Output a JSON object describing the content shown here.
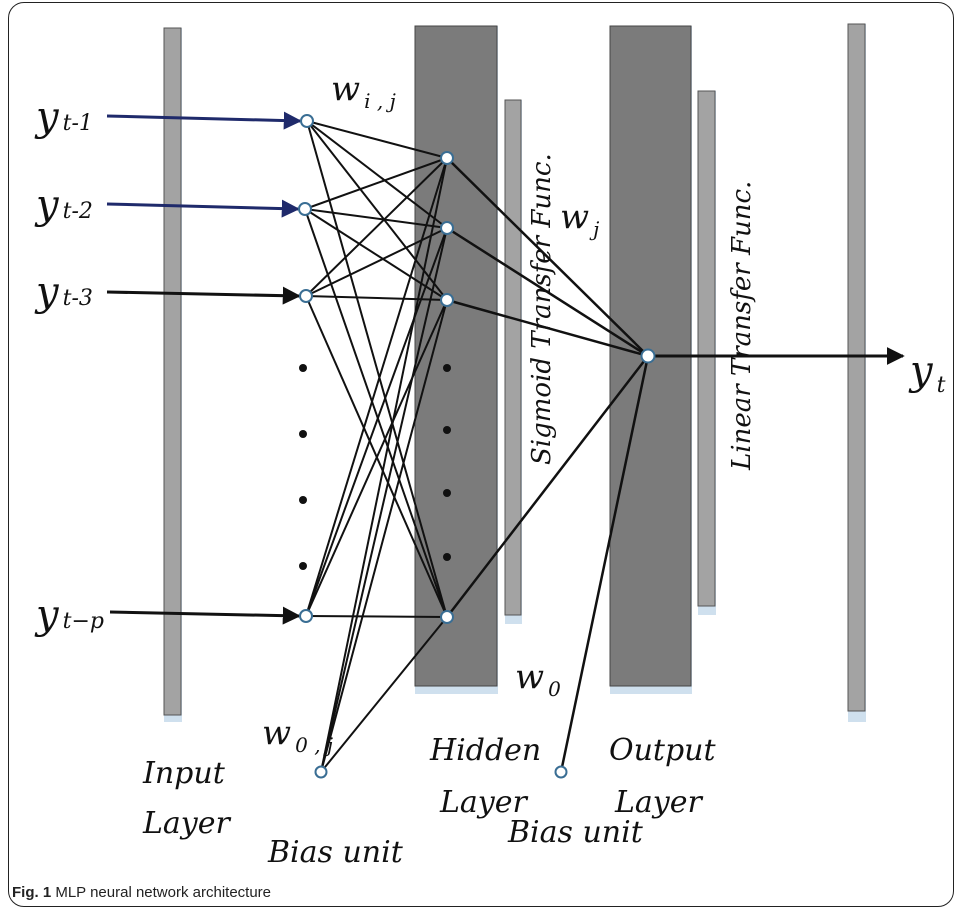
{
  "inputs": [
    {
      "base": "y",
      "sub": "t-1"
    },
    {
      "base": "y",
      "sub": "t-2"
    },
    {
      "base": "y",
      "sub": "t-3"
    },
    {
      "base": "y",
      "sub": "t−p"
    }
  ],
  "output": {
    "base": "y",
    "sub": "t"
  },
  "weights": {
    "wij": {
      "base": "w",
      "sub": "i , j"
    },
    "wj": {
      "base": "w",
      "sub": "j"
    },
    "w0": {
      "base": "w",
      "sub": "0"
    },
    "w0j": {
      "base": "w",
      "sub": "0 , j"
    }
  },
  "labels": {
    "input_layer": [
      "Input",
      "Layer"
    ],
    "hidden_layer": [
      "Hidden",
      "Layer"
    ],
    "output_layer": [
      "Output",
      "Layer"
    ],
    "bias_unit_1": "Bias unit",
    "bias_unit_2": "Bias unit",
    "sigmoid": "Sigmoid Transfer Func.",
    "linear": "Linear Transfer Func."
  },
  "caption": {
    "label": "Fig. 1",
    "text": "MLP neural network architecture"
  },
  "colors": {
    "input_arrow_blue": "#1f2a6b",
    "bar_light": "#a3a3a3",
    "bar_dark": "#7b7b7b",
    "node_stroke": "#3a6e94",
    "shadow": "#cfe0ee"
  }
}
